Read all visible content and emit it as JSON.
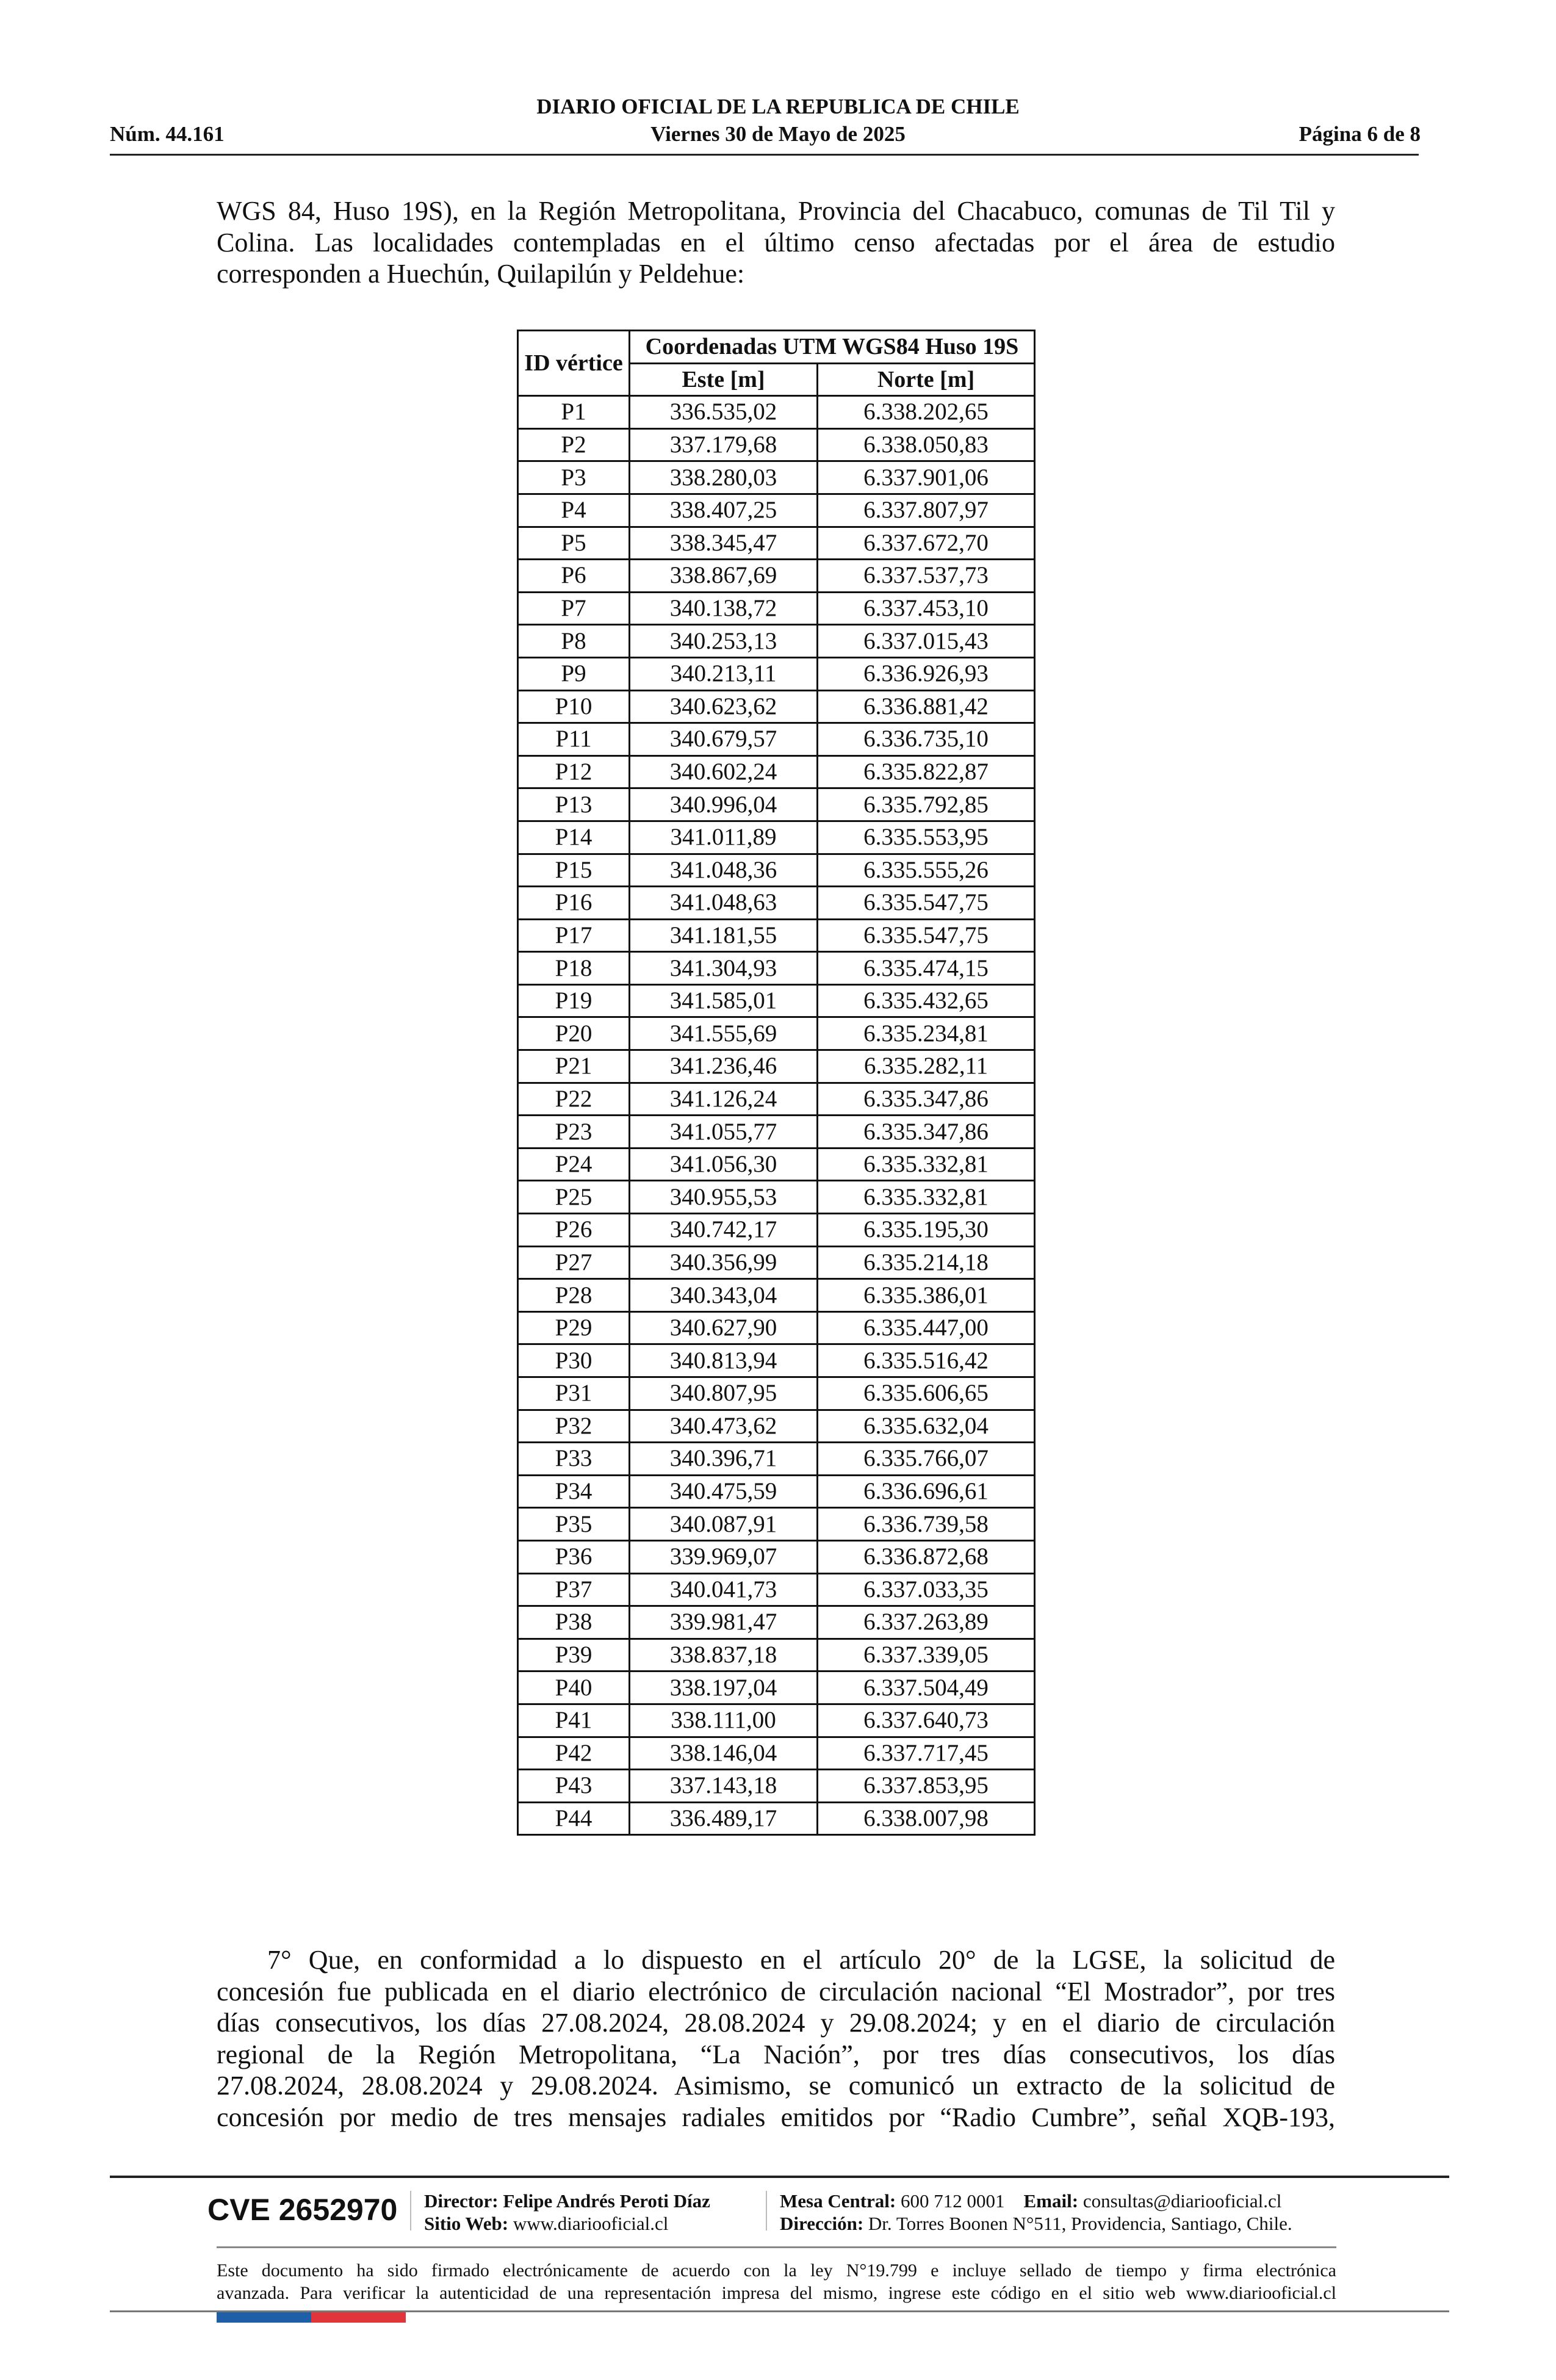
{
  "header": {
    "title": "DIARIO OFICIAL DE LA REPUBLICA DE CHILE",
    "number": "Núm. 44.161",
    "date": "Viernes 30 de Mayo de 2025",
    "page": "Página 6 de 8"
  },
  "intro_lines": [
    "WGS 84, Huso 19S), en la Región Metropolitana, Provincia del Chacabuco, comunas de Til Til y",
    "Colina. Las localidades contempladas en el último censo afectadas por el área de estudio",
    "corresponden a Huechún, Quilapilún y Peldehue:"
  ],
  "table": {
    "id_header": "ID vértice",
    "group_header": "Coordenadas UTM WGS84 Huso 19S",
    "este_header": "Este [m]",
    "norte_header": "Norte [m]",
    "rows": [
      [
        "P1",
        "336.535,02",
        "6.338.202,65"
      ],
      [
        "P2",
        "337.179,68",
        "6.338.050,83"
      ],
      [
        "P3",
        "338.280,03",
        "6.337.901,06"
      ],
      [
        "P4",
        "338.407,25",
        "6.337.807,97"
      ],
      [
        "P5",
        "338.345,47",
        "6.337.672,70"
      ],
      [
        "P6",
        "338.867,69",
        "6.337.537,73"
      ],
      [
        "P7",
        "340.138,72",
        "6.337.453,10"
      ],
      [
        "P8",
        "340.253,13",
        "6.337.015,43"
      ],
      [
        "P9",
        "340.213,11",
        "6.336.926,93"
      ],
      [
        "P10",
        "340.623,62",
        "6.336.881,42"
      ],
      [
        "P11",
        "340.679,57",
        "6.336.735,10"
      ],
      [
        "P12",
        "340.602,24",
        "6.335.822,87"
      ],
      [
        "P13",
        "340.996,04",
        "6.335.792,85"
      ],
      [
        "P14",
        "341.011,89",
        "6.335.553,95"
      ],
      [
        "P15",
        "341.048,36",
        "6.335.555,26"
      ],
      [
        "P16",
        "341.048,63",
        "6.335.547,75"
      ],
      [
        "P17",
        "341.181,55",
        "6.335.547,75"
      ],
      [
        "P18",
        "341.304,93",
        "6.335.474,15"
      ],
      [
        "P19",
        "341.585,01",
        "6.335.432,65"
      ],
      [
        "P20",
        "341.555,69",
        "6.335.234,81"
      ],
      [
        "P21",
        "341.236,46",
        "6.335.282,11"
      ],
      [
        "P22",
        "341.126,24",
        "6.335.347,86"
      ],
      [
        "P23",
        "341.055,77",
        "6.335.347,86"
      ],
      [
        "P24",
        "341.056,30",
        "6.335.332,81"
      ],
      [
        "P25",
        "340.955,53",
        "6.335.332,81"
      ],
      [
        "P26",
        "340.742,17",
        "6.335.195,30"
      ],
      [
        "P27",
        "340.356,99",
        "6.335.214,18"
      ],
      [
        "P28",
        "340.343,04",
        "6.335.386,01"
      ],
      [
        "P29",
        "340.627,90",
        "6.335.447,00"
      ],
      [
        "P30",
        "340.813,94",
        "6.335.516,42"
      ],
      [
        "P31",
        "340.807,95",
        "6.335.606,65"
      ],
      [
        "P32",
        "340.473,62",
        "6.335.632,04"
      ],
      [
        "P33",
        "340.396,71",
        "6.335.766,07"
      ],
      [
        "P34",
        "340.475,59",
        "6.336.696,61"
      ],
      [
        "P35",
        "340.087,91",
        "6.336.739,58"
      ],
      [
        "P36",
        "339.969,07",
        "6.336.872,68"
      ],
      [
        "P37",
        "340.041,73",
        "6.337.033,35"
      ],
      [
        "P38",
        "339.981,47",
        "6.337.263,89"
      ],
      [
        "P39",
        "338.837,18",
        "6.337.339,05"
      ],
      [
        "P40",
        "338.197,04",
        "6.337.504,49"
      ],
      [
        "P41",
        "338.111,00",
        "6.337.640,73"
      ],
      [
        "P42",
        "338.146,04",
        "6.337.717,45"
      ],
      [
        "P43",
        "337.143,18",
        "6.337.853,95"
      ],
      [
        "P44",
        "336.489,17",
        "6.338.007,98"
      ]
    ]
  },
  "para7_lines": [
    "7° Que, en conformidad a lo dispuesto en el artículo 20° de la LGSE, la solicitud de",
    "concesión fue publicada en el diario electrónico de circulación nacional “El Mostrador”, por tres",
    "días consecutivos, los días 27.08.2024, 28.08.2024 y 29.08.2024; y en el diario de circulación",
    "regional de la Región Metropolitana, “La Nación”, por tres días consecutivos, los días",
    "27.08.2024, 28.08.2024 y 29.08.2024. Asimismo, se comunicó un extracto de la solicitud de",
    "concesión por medio de tres mensajes radiales emitidos por “Radio Cumbre”, señal XQB-193,"
  ],
  "footer": {
    "cve": "CVE 2652970",
    "director_label": "Director:",
    "director_name": "Felipe Andrés Peroti Díaz",
    "web_label": "Sitio Web:",
    "web": "www.diariooficial.cl",
    "phone_label": "Mesa Central:",
    "phone": "600 712 0001",
    "email_label": "Email:",
    "email": "consultas@diariooficial.cl",
    "address_label": "Dirección:",
    "address": "Dr. Torres Boonen N°511, Providencia, Santiago, Chile.",
    "legal_lines": [
      "Este documento ha sido firmado electrónicamente de acuerdo con la ley N°19.799 e incluye sellado de tiempo y firma electrónica",
      "avanzada. Para verificar la autenticidad de una representación impresa del mismo, ingrese este código en el sitio web www.diariooficial.cl"
    ],
    "flag_colors": [
      "#1f5fa8",
      "#e2353b"
    ]
  }
}
